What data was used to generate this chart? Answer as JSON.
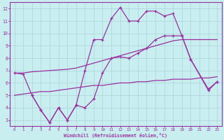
{
  "line_color": "#9b30a0",
  "bg_color": "#c8eef0",
  "grid_color": "#a8d4d8",
  "xlabel": "Windchill (Refroidissement éolien,°C)",
  "ylabel_ticks": [
    3,
    4,
    5,
    6,
    7,
    8,
    9,
    10,
    11,
    12
  ],
  "xlim": [
    -0.5,
    23.5
  ],
  "ylim": [
    2.5,
    12.5
  ],
  "curveA_x": [
    0,
    1,
    2,
    3,
    4,
    5,
    6,
    7,
    8,
    9,
    10,
    11,
    12,
    13,
    14,
    15,
    16,
    17,
    18,
    19,
    20,
    22,
    23
  ],
  "curveA_y": [
    6.8,
    6.7,
    5.0,
    3.8,
    2.8,
    4.0,
    3.0,
    4.2,
    4.0,
    4.7,
    6.8,
    8.0,
    8.1,
    8.0,
    8.4,
    8.8,
    9.5,
    9.8,
    9.8,
    9.8,
    7.9,
    5.4,
    6.1
  ],
  "curveB_x": [
    0,
    1,
    2,
    3,
    4,
    5,
    6,
    7,
    8,
    9,
    10,
    11,
    12,
    13,
    14,
    15,
    16,
    17,
    18,
    19,
    20,
    21,
    22,
    23
  ],
  "curveB_y": [
    6.8,
    6.8,
    6.9,
    6.95,
    7.0,
    7.05,
    7.1,
    7.2,
    7.4,
    7.6,
    7.8,
    8.0,
    8.2,
    8.4,
    8.6,
    8.8,
    9.0,
    9.2,
    9.4,
    9.5,
    9.5,
    9.5,
    9.5,
    9.5
  ],
  "curveC_x": [
    0,
    1,
    2,
    3,
    4,
    5,
    6,
    7,
    8,
    9,
    10,
    11,
    12,
    13,
    14,
    15,
    16,
    17,
    18,
    19,
    20,
    21,
    22,
    23
  ],
  "curveC_y": [
    5.0,
    5.1,
    5.2,
    5.3,
    5.3,
    5.4,
    5.5,
    5.6,
    5.7,
    5.8,
    5.8,
    5.9,
    6.0,
    6.0,
    6.1,
    6.1,
    6.2,
    6.2,
    6.3,
    6.3,
    6.3,
    6.4,
    6.4,
    6.5
  ],
  "curveD_x": [
    2,
    3,
    4,
    5,
    6,
    7,
    8,
    9,
    10,
    11,
    12,
    13,
    14,
    15,
    16,
    17,
    18,
    19,
    20,
    22,
    23
  ],
  "curveD_y": [
    5.0,
    3.8,
    2.8,
    4.0,
    3.0,
    4.2,
    7.0,
    9.5,
    9.5,
    11.2,
    12.1,
    11.0,
    11.0,
    11.8,
    11.8,
    11.4,
    11.6,
    9.8,
    7.9,
    5.5,
    6.1
  ]
}
